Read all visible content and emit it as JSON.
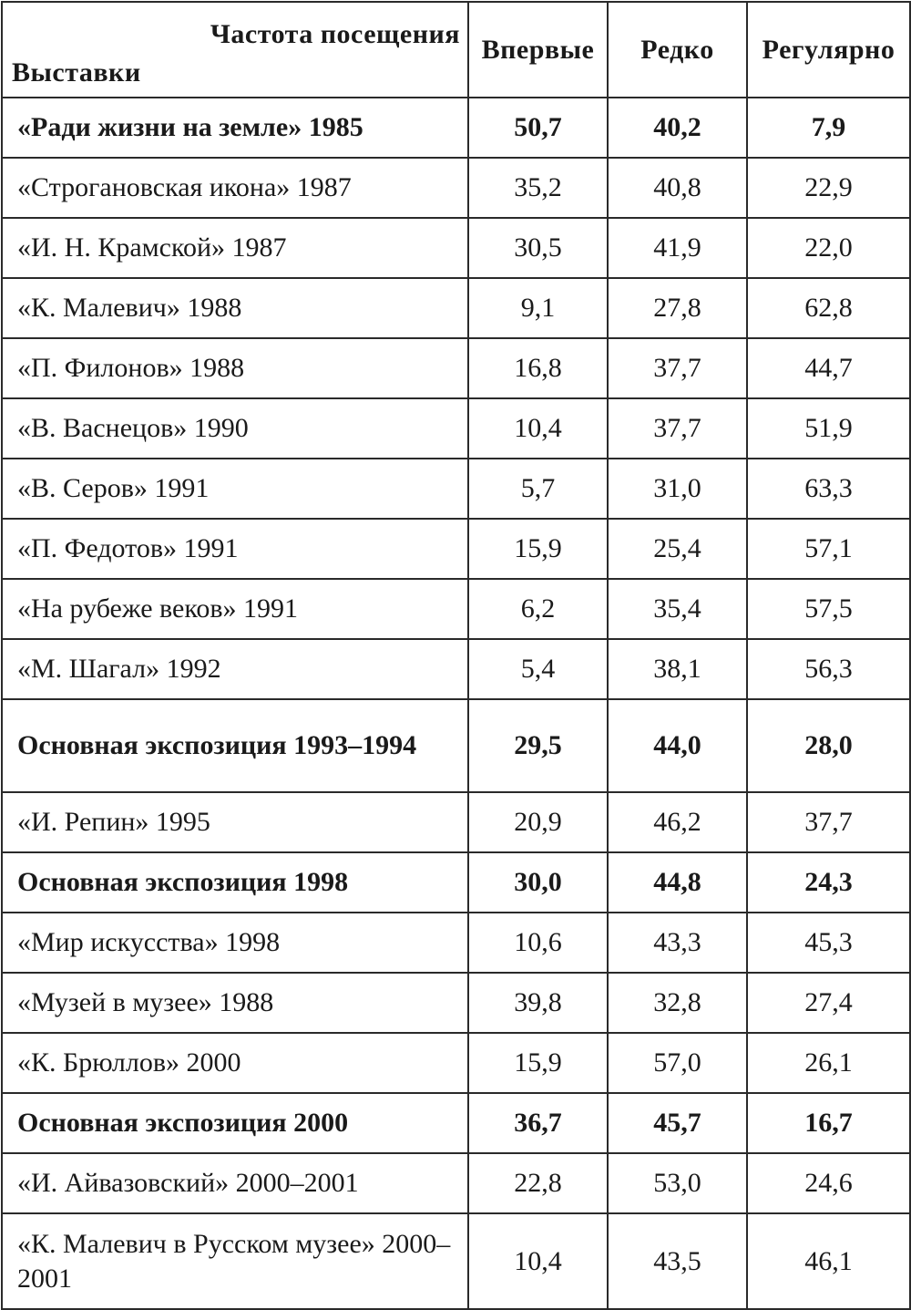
{
  "header": {
    "frequency_label": "Частота посещения",
    "exhibitions_label": "Выставки",
    "columns": [
      "Впервые",
      "Редко",
      "Регулярно"
    ]
  },
  "rows": [
    {
      "name": "«Ради жизни на земле» 1985",
      "values": [
        "50,7",
        "40,2",
        "7,9"
      ]
    },
    {
      "name": "«Строгановская икона» 1987",
      "values": [
        "35,2",
        "40,8",
        "22,9"
      ]
    },
    {
      "name": "«И. Н. Крамской» 1987",
      "values": [
        "30,5",
        "41,9",
        "22,0"
      ]
    },
    {
      "name": "«К. Малевич» 1988",
      "values": [
        "9,1",
        "27,8",
        "62,8"
      ]
    },
    {
      "name": "«П. Филонов» 1988",
      "values": [
        "16,8",
        "37,7",
        "44,7"
      ]
    },
    {
      "name": "«В. Васнецов» 1990",
      "values": [
        "10,4",
        "37,7",
        "51,9"
      ]
    },
    {
      "name": "«В. Серов» 1991",
      "values": [
        "5,7",
        "31,0",
        "63,3"
      ]
    },
    {
      "name": "«П. Федотов» 1991",
      "values": [
        "15,9",
        "25,4",
        "57,1"
      ]
    },
    {
      "name": "«На рубеже веков» 1991",
      "values": [
        "6,2",
        "35,4",
        "57,5"
      ]
    },
    {
      "name": "«М. Шагал» 1992",
      "values": [
        "5,4",
        "38,1",
        "56,3"
      ]
    },
    {
      "name": "Основная экспозиция 1993–1994",
      "values": [
        "29,5",
        "44,0",
        "28,0"
      ]
    },
    {
      "name": "«И. Репин» 1995",
      "values": [
        "20,9",
        "46,2",
        "37,7"
      ]
    },
    {
      "name": "Основная экспозиция 1998",
      "values": [
        "30,0",
        "44,8",
        "24,3"
      ]
    },
    {
      "name": "«Мир искусства» 1998",
      "values": [
        "10,6",
        "43,3",
        "45,3"
      ]
    },
    {
      "name": "«Музей в музее» 1988",
      "values": [
        "39,8",
        "32,8",
        "27,4"
      ]
    },
    {
      "name": "«К. Брюллов» 2000",
      "values": [
        "15,9",
        "57,0",
        "26,1"
      ]
    },
    {
      "name": "Основная экспозиция 2000",
      "values": [
        "36,7",
        "45,7",
        "16,7"
      ]
    },
    {
      "name": "«И. Айвазовский» 2000–2001",
      "values": [
        "22,8",
        "53,0",
        "24,6"
      ]
    },
    {
      "name": "«К. Малевич в Русском музее» 2000–2001",
      "values": [
        "10,4",
        "43,5",
        "46,1"
      ]
    }
  ]
}
